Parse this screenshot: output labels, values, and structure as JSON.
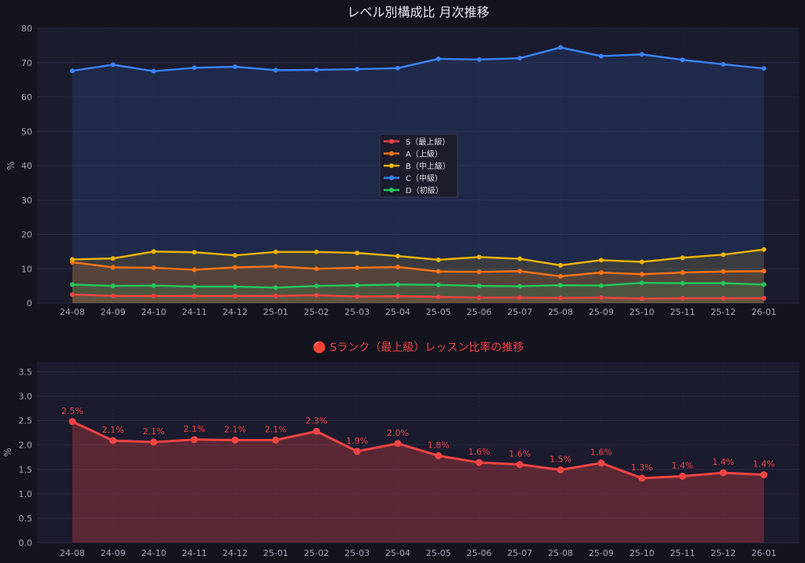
{
  "figure": {
    "background": "#14141f",
    "panel_background": "#1b1b2e",
    "grid_color": "#2a2a40",
    "axis_text_color": "#a8a8b8",
    "title_color": "#e6e6ee"
  },
  "chart_data": [
    {
      "type": "line",
      "title": "レベル別構成比 月次推移",
      "xlabel": "",
      "ylabel": "%",
      "ylim": [
        0,
        80
      ],
      "yticks": [
        0,
        10,
        20,
        30,
        40,
        50,
        60,
        70,
        80
      ],
      "grid": true,
      "legend": "center",
      "categories": [
        "24-08",
        "24-09",
        "24-10",
        "24-11",
        "24-12",
        "25-01",
        "25-02",
        "25-03",
        "25-04",
        "25-05",
        "25-06",
        "25-07",
        "25-08",
        "25-09",
        "25-10",
        "25-11",
        "25-12",
        "26-01"
      ],
      "series": [
        {
          "name": "S（最上級）",
          "color": "#ef4444",
          "values": [
            2.5,
            2.1,
            2.1,
            2.1,
            2.1,
            2.1,
            2.3,
            1.9,
            2.0,
            1.8,
            1.6,
            1.6,
            1.5,
            1.6,
            1.3,
            1.4,
            1.4,
            1.4
          ]
        },
        {
          "name": "A（上級）",
          "color": "#f97316",
          "values": [
            11.9,
            10.4,
            10.3,
            9.7,
            10.4,
            10.7,
            10.0,
            10.3,
            10.5,
            9.2,
            9.1,
            9.3,
            7.8,
            8.9,
            8.4,
            8.9,
            9.2,
            9.3
          ]
        },
        {
          "name": "B（中上級）",
          "color": "#eab308",
          "values": [
            12.7,
            13.0,
            15.0,
            14.8,
            13.9,
            14.9,
            14.9,
            14.6,
            13.7,
            12.6,
            13.4,
            12.9,
            11.0,
            12.5,
            12.0,
            13.2,
            14.1,
            15.6
          ]
        },
        {
          "name": "C（中級）",
          "color": "#3b82f6",
          "values": [
            67.6,
            69.4,
            67.5,
            68.5,
            68.8,
            67.8,
            67.9,
            68.1,
            68.4,
            71.1,
            70.9,
            71.3,
            74.4,
            71.9,
            72.4,
            70.8,
            69.5,
            68.3
          ]
        },
        {
          "name": "D（初級）",
          "color": "#22c55e",
          "values": [
            5.4,
            5.0,
            5.1,
            4.8,
            4.8,
            4.5,
            5.0,
            5.2,
            5.4,
            5.3,
            5.0,
            4.9,
            5.2,
            5.1,
            5.9,
            5.8,
            5.8,
            5.4
          ]
        }
      ]
    },
    {
      "type": "area",
      "title": "🔴 Sランク（最上級）レッスン比率の推移",
      "title_color": "#ef4444",
      "xlabel": "",
      "ylabel": "%",
      "ylim": [
        0,
        3.7
      ],
      "yticks": [
        0.0,
        0.5,
        1.0,
        1.5,
        2.0,
        2.5,
        3.0,
        3.5
      ],
      "grid": true,
      "categories": [
        "24-08",
        "24-09",
        "24-10",
        "24-11",
        "24-12",
        "25-01",
        "25-02",
        "25-03",
        "25-04",
        "25-05",
        "25-06",
        "25-07",
        "25-08",
        "25-09",
        "25-10",
        "25-11",
        "25-12",
        "26-01"
      ],
      "series": [
        {
          "color": "#ef4444",
          "values": [
            2.48,
            2.09,
            2.06,
            2.11,
            2.1,
            2.1,
            2.28,
            1.87,
            2.03,
            1.78,
            1.64,
            1.6,
            1.49,
            1.63,
            1.32,
            1.36,
            1.43,
            1.39
          ]
        }
      ],
      "data_labels": [
        "2.5%",
        "2.1%",
        "2.1%",
        "2.1%",
        "2.1%",
        "2.1%",
        "2.3%",
        "1.9%",
        "2.0%",
        "1.8%",
        "1.6%",
        "1.6%",
        "1.5%",
        "1.6%",
        "1.3%",
        "1.4%",
        "1.4%",
        "1.4%"
      ]
    }
  ]
}
